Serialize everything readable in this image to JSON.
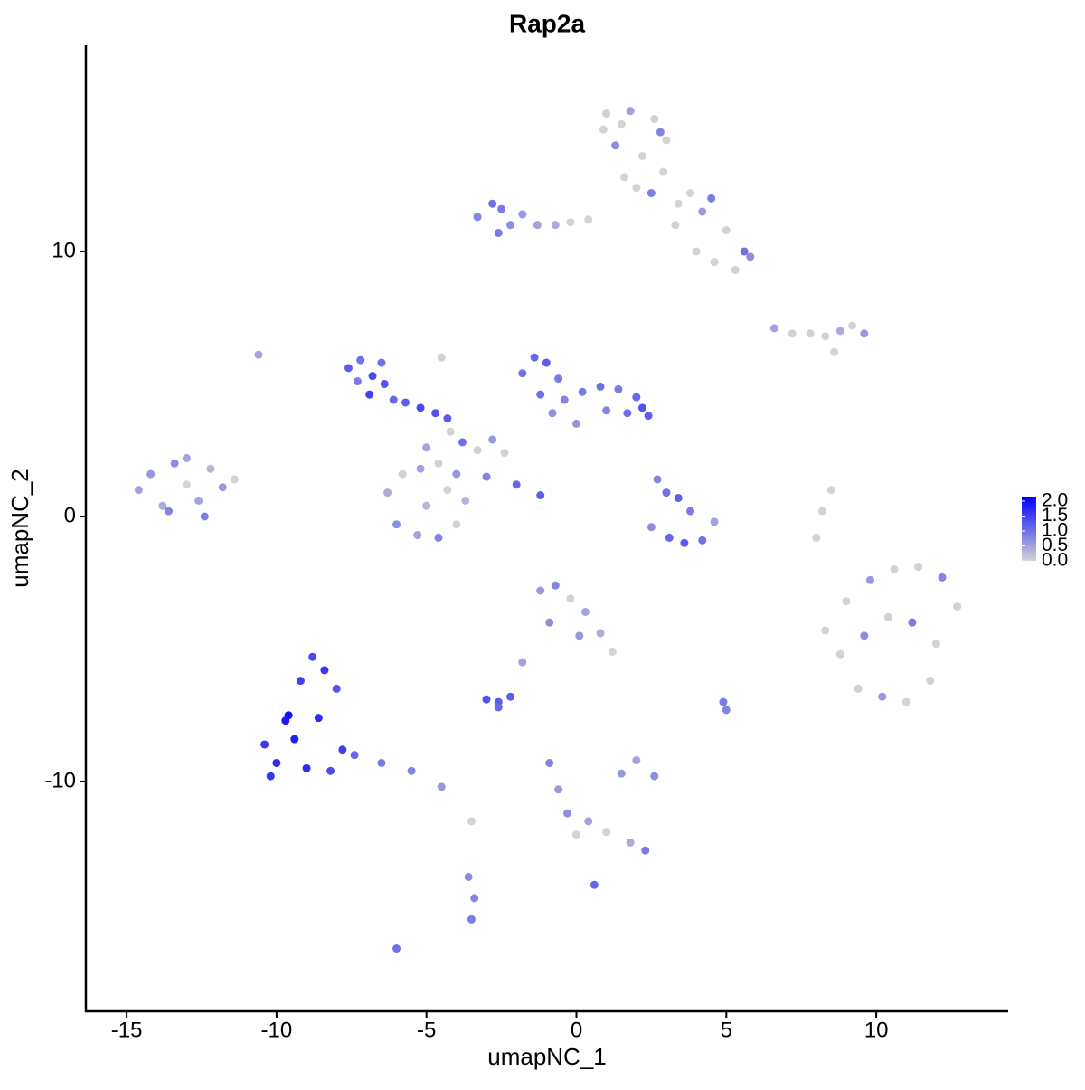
{
  "chart_data": {
    "type": "scatter",
    "title": "Rap2a",
    "x_label": "umapNC_1",
    "y_label": "umapNC_2",
    "xlim": [
      -16.36,
      14.4
    ],
    "ylim": [
      -18.67,
      17.78
    ],
    "xticks": [
      -15,
      -10,
      -5,
      0,
      5,
      10
    ],
    "yticks": [
      -10,
      0,
      10
    ],
    "color_low": "#d3d3d3",
    "color_high": "#0000ff",
    "colorlim": [
      0,
      2.15
    ],
    "colorbar_ticks": [
      {
        "value": 0,
        "label": "0.0"
      },
      {
        "value": 0.5,
        "label": "0.5"
      },
      {
        "value": 1,
        "label": "1.0"
      },
      {
        "value": 1.5,
        "label": "1.5"
      },
      {
        "value": 2,
        "label": "2.0"
      }
    ],
    "x": [
      1.0,
      1.8,
      2.6,
      3.0,
      1.3,
      2.2,
      2.9,
      1.6,
      2.5,
      3.4,
      4.2,
      5.0,
      5.6,
      4.6,
      0.9,
      1.5,
      2.0,
      2.8,
      3.8,
      4.5,
      5.3,
      5.8,
      4.0,
      3.3,
      -3.3,
      -2.8,
      -2.5,
      -2.2,
      -1.8,
      -1.3,
      -0.7,
      -0.2,
      0.4,
      -2.6,
      6.6,
      7.2,
      7.8,
      8.3,
      8.8,
      9.2,
      9.6,
      8.6,
      -7.6,
      -7.2,
      -6.8,
      -6.4,
      -6.9,
      -6.1,
      -5.7,
      -5.2,
      -4.7,
      -4.3,
      -7.3,
      -6.5,
      -1.8,
      -1.4,
      -1.0,
      -0.6,
      -1.2,
      -0.4,
      0.2,
      0.8,
      1.4,
      2.0,
      2.4,
      1.0,
      0.0,
      -0.8,
      1.7,
      2.2,
      -4.2,
      -3.8,
      -3.3,
      -2.8,
      -2.4,
      -3.0,
      -4.5,
      -2.0,
      -5.0,
      -1.2,
      -6.3,
      -5.8,
      -5.2,
      -4.6,
      -4.0,
      -3.7,
      -6.0,
      -5.3,
      -4.6,
      -4.0,
      -5.0,
      -4.3,
      -14.6,
      -14.2,
      -13.8,
      -13.4,
      -13.0,
      -12.6,
      -12.2,
      -11.8,
      -13.6,
      -13.0,
      -12.4,
      -11.4,
      2.7,
      3.0,
      3.4,
      3.8,
      2.5,
      3.1,
      3.6,
      4.2,
      4.6,
      8.3,
      9.0,
      9.8,
      10.6,
      11.4,
      12.2,
      12.7,
      8.8,
      9.6,
      10.4,
      11.2,
      12.0,
      9.4,
      10.2,
      11.0,
      11.8,
      -10.4,
      -10.0,
      -9.6,
      -9.2,
      -8.8,
      -8.4,
      -8.0,
      -9.4,
      -8.6,
      -7.8,
      -10.2,
      -9.7,
      -9.0,
      -8.2,
      -7.4,
      -6.5,
      -5.5,
      -4.5,
      -1.2,
      -0.7,
      -0.2,
      0.3,
      0.8,
      1.2,
      -0.9,
      0.1,
      -1.8,
      -2.6,
      -3.0,
      -2.6,
      -2.2,
      1.5,
      2.0,
      2.6,
      -0.9,
      -0.6,
      -0.3,
      0.0,
      0.4,
      1.0,
      1.8,
      2.3,
      -3.6,
      -3.4,
      -3.5,
      -3.5,
      -6.0,
      0.6,
      8.0,
      8.2,
      8.5,
      -10.6,
      5.0,
      4.9
    ],
    "y": [
      15.2,
      15.3,
      15.0,
      14.2,
      14.0,
      13.6,
      13.0,
      12.8,
      12.2,
      11.8,
      11.5,
      10.8,
      10.0,
      9.6,
      14.6,
      14.8,
      12.4,
      14.5,
      12.2,
      12.0,
      9.3,
      9.8,
      10.0,
      11.0,
      11.3,
      11.8,
      11.6,
      11.0,
      11.4,
      11.0,
      11.0,
      11.1,
      11.2,
      10.7,
      7.1,
      6.9,
      6.9,
      6.8,
      7.0,
      7.2,
      6.9,
      6.2,
      5.6,
      5.9,
      5.3,
      5.0,
      4.6,
      4.4,
      4.3,
      4.1,
      3.9,
      3.7,
      5.1,
      5.8,
      5.4,
      6.0,
      5.8,
      5.2,
      4.6,
      4.4,
      4.7,
      4.9,
      4.8,
      4.5,
      3.8,
      4.0,
      3.5,
      3.9,
      3.9,
      4.1,
      3.2,
      2.8,
      2.5,
      2.9,
      2.4,
      1.5,
      6.0,
      1.2,
      2.6,
      0.8,
      0.9,
      1.6,
      1.8,
      2.0,
      1.6,
      0.6,
      -0.3,
      -0.7,
      -0.8,
      -0.3,
      0.4,
      1.0,
      1.0,
      1.6,
      0.4,
      2.0,
      1.2,
      0.6,
      1.8,
      1.1,
      0.2,
      2.2,
      0.0,
      1.4,
      1.4,
      0.9,
      0.7,
      0.2,
      -0.4,
      -0.8,
      -1.0,
      -0.9,
      -0.2,
      -4.3,
      -3.2,
      -2.4,
      -2.0,
      -1.9,
      -2.3,
      -3.4,
      -5.2,
      -4.5,
      -3.8,
      -4.0,
      -4.8,
      -6.5,
      -6.8,
      -7.0,
      -6.2,
      -8.6,
      -9.3,
      -7.5,
      -6.2,
      -5.3,
      -5.8,
      -6.5,
      -8.4,
      -7.6,
      -8.8,
      -9.8,
      -7.7,
      -9.5,
      -9.6,
      -9.0,
      -9.3,
      -9.6,
      -10.2,
      -2.8,
      -2.6,
      -3.1,
      -3.6,
      -4.4,
      -5.1,
      -4.0,
      -4.5,
      -5.5,
      -7.0,
      -6.9,
      -7.2,
      -6.8,
      -9.7,
      -9.2,
      -9.8,
      -9.3,
      -10.3,
      -11.2,
      -12.0,
      -11.5,
      -11.9,
      -12.3,
      -12.6,
      -13.6,
      -14.4,
      -15.2,
      -11.5,
      -16.3,
      -13.9,
      -0.8,
      0.2,
      1.0,
      6.1,
      -7.3,
      -7.0
    ],
    "values": [
      0,
      0.5,
      0,
      0,
      0.7,
      0,
      0,
      0,
      0.9,
      0,
      0.6,
      0,
      1.0,
      0,
      0,
      0,
      0,
      0.8,
      0,
      0.9,
      0,
      0.7,
      0,
      0,
      0.8,
      1.0,
      0.9,
      0.7,
      0.6,
      0.5,
      0.4,
      0,
      0,
      0.9,
      0.5,
      0,
      0,
      0,
      0.4,
      0,
      0.6,
      0,
      1.2,
      1.0,
      1.4,
      1.3,
      1.5,
      1.1,
      1.2,
      1.4,
      1.3,
      1.2,
      0.9,
      1.0,
      1.0,
      1.1,
      1.2,
      0.9,
      1.0,
      0.8,
      0.9,
      1.0,
      0.9,
      1.1,
      1.2,
      0.8,
      0.6,
      0.7,
      1.0,
      1.3,
      0,
      1.0,
      0,
      0.6,
      0,
      0.8,
      0,
      1.1,
      0.5,
      1.2,
      0.4,
      0,
      0.5,
      0,
      0.6,
      0.3,
      0.7,
      0.5,
      0.8,
      0,
      0.3,
      0,
      0.5,
      0.6,
      0.4,
      0.7,
      0,
      0.5,
      0.3,
      0.6,
      0.8,
      0.5,
      0.9,
      0,
      0.8,
      1.0,
      1.2,
      0.9,
      0.7,
      1.1,
      1.2,
      1.0,
      0.5,
      0,
      0,
      0.6,
      0,
      0,
      0.8,
      0,
      0,
      0.7,
      0,
      0.9,
      0,
      0,
      0.6,
      0,
      0,
      1.6,
      1.7,
      2.0,
      1.5,
      1.4,
      1.6,
      1.3,
      1.8,
      1.7,
      1.5,
      1.6,
      1.9,
      1.7,
      1.4,
      1.1,
      0.9,
      0.8,
      0.6,
      0.6,
      0.8,
      0,
      0.5,
      0.4,
      0,
      0.7,
      0.6,
      0.5,
      1.2,
      1.3,
      1.1,
      1.2,
      0.6,
      0.5,
      0.7,
      0.8,
      0.6,
      0.7,
      0,
      0.5,
      0,
      0.4,
      0.9,
      0.7,
      0.8,
      0.9,
      0,
      1.0,
      1.1,
      0,
      0,
      0,
      0.5,
      0.8,
      0.9
    ]
  }
}
